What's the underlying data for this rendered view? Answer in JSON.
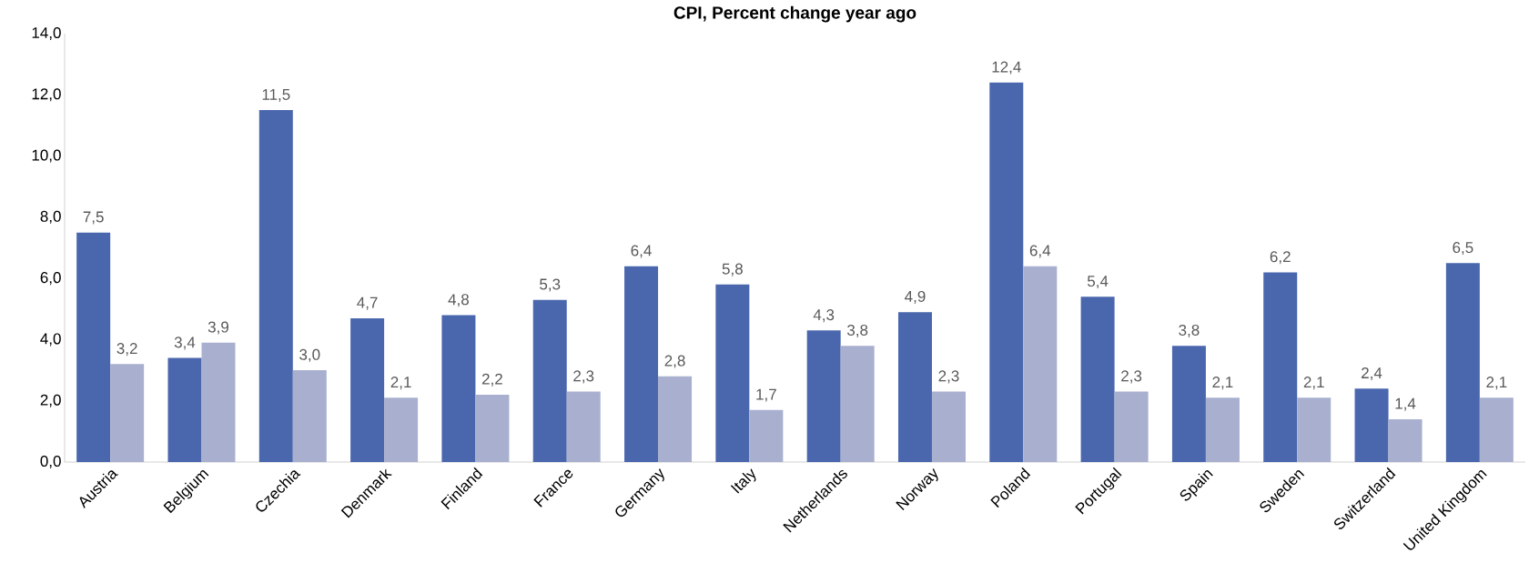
{
  "chart_data": {
    "type": "bar",
    "title": "CPI, Percent change year ago",
    "categories": [
      "Austria",
      "Belgium",
      "Czechia",
      "Denmark",
      "Finland",
      "France",
      "Germany",
      "Italy",
      "Netherlands",
      "Norway",
      "Poland",
      "Portugal",
      "Spain",
      "Sweden",
      "Switzerland",
      "United Kingdom"
    ],
    "series": [
      {
        "color": "#4a67ae",
        "values": [
          7.5,
          3.4,
          11.5,
          4.7,
          4.8,
          5.3,
          6.4,
          5.8,
          4.3,
          4.9,
          12.4,
          5.4,
          3.8,
          6.2,
          2.4,
          6.5
        ],
        "value_labels": [
          "7,5",
          "3,4",
          "11,5",
          "4,7",
          "4,8",
          "5,3",
          "6,4",
          "5,8",
          "4,3",
          "4,9",
          "12,4",
          "5,4",
          "3,8",
          "6,2",
          "2,4",
          "6,5"
        ]
      },
      {
        "color": "#a9b0cf",
        "values": [
          3.2,
          3.9,
          3.0,
          2.1,
          2.2,
          2.3,
          2.8,
          1.7,
          3.8,
          2.3,
          6.4,
          2.3,
          2.1,
          2.1,
          1.4,
          2.1
        ],
        "value_labels": [
          "3,2",
          "3,9",
          "3,0",
          "2,1",
          "2,2",
          "2,3",
          "2,8",
          "1,7",
          "3,8",
          "2,3",
          "6,4",
          "2,3",
          "2,1",
          "2,1",
          "1,4",
          "2,1"
        ]
      }
    ],
    "ylim": [
      0,
      14
    ],
    "yticks": [
      {
        "value": 0,
        "label": "0,0"
      },
      {
        "value": 2,
        "label": "2,0"
      },
      {
        "value": 4,
        "label": "4,0"
      },
      {
        "value": 6,
        "label": "6,0"
      },
      {
        "value": 8,
        "label": "8,0"
      },
      {
        "value": 10,
        "label": "10,0"
      },
      {
        "value": 12,
        "label": "12,0"
      },
      {
        "value": 14,
        "label": "14,0"
      }
    ],
    "grid": false,
    "legend": false
  }
}
